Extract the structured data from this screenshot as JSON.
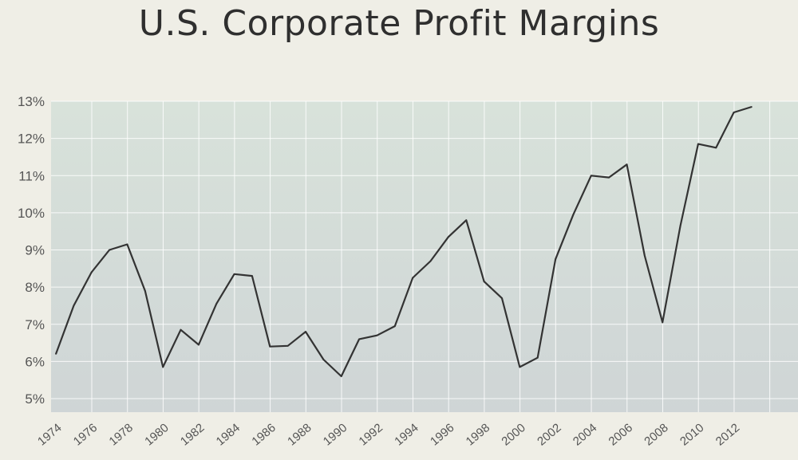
{
  "chart_data": {
    "type": "line",
    "title": "U.S. Corporate Profit Margins",
    "xlabel": "",
    "ylabel": "",
    "ylim": [
      5,
      13
    ],
    "xlim": [
      1974,
      2013.3
    ],
    "grid": true,
    "line_color": "#333333",
    "y_ticks": [
      "5%",
      "6%",
      "7%",
      "8%",
      "9%",
      "10%",
      "11%",
      "12%",
      "13%"
    ],
    "x_ticks": [
      "1974",
      "1976",
      "1978",
      "1980",
      "1982",
      "1984",
      "1986",
      "1988",
      "1990",
      "1992",
      "1994",
      "1996",
      "1998",
      "2000",
      "2002",
      "2004",
      "2006",
      "2008",
      "2010",
      "2012"
    ],
    "series": [
      {
        "x": [
          1974,
          1975,
          1976,
          1977,
          1978,
          1979,
          1980,
          1981,
          1982,
          1983,
          1984,
          1985,
          1986,
          1987,
          1988,
          1989,
          1990,
          1991,
          1992,
          1993,
          1994,
          1995,
          1996,
          1997,
          1998,
          1999,
          2000,
          2001,
          2002,
          2003,
          2004,
          2005,
          2006,
          2007,
          2008,
          2009,
          2010,
          2011,
          2012,
          2013
        ],
        "y": [
          6.2,
          7.5,
          8.4,
          9.0,
          9.15,
          7.9,
          5.85,
          6.85,
          6.45,
          7.55,
          8.35,
          8.3,
          6.4,
          6.42,
          6.8,
          6.05,
          5.6,
          6.6,
          6.7,
          6.95,
          8.25,
          8.7,
          9.35,
          9.8,
          8.15,
          7.7,
          5.85,
          6.1,
          8.75,
          9.95,
          11.0,
          10.95,
          11.3,
          8.85,
          7.05,
          9.65,
          11.85,
          11.75,
          12.7,
          12.85
        ]
      }
    ]
  }
}
